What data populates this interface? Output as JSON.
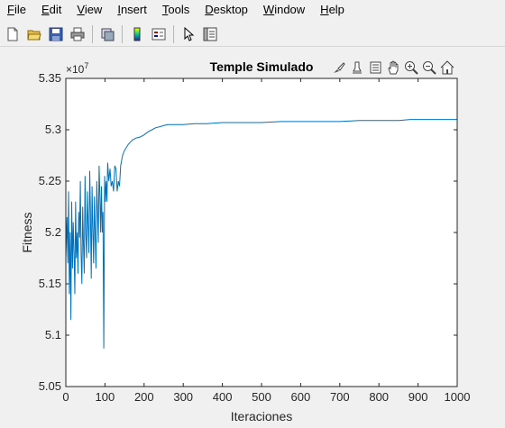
{
  "menu": {
    "items": [
      {
        "label": "File",
        "key": "F"
      },
      {
        "label": "Edit",
        "key": "E"
      },
      {
        "label": "View",
        "key": "V"
      },
      {
        "label": "Insert",
        "key": "I"
      },
      {
        "label": "Tools",
        "key": "T"
      },
      {
        "label": "Desktop",
        "key": "D"
      },
      {
        "label": "Window",
        "key": "W"
      },
      {
        "label": "Help",
        "key": "H"
      }
    ]
  },
  "toolbar": {
    "icons": [
      "new-figure-icon",
      "open-file-icon",
      "save-icon",
      "print-icon",
      "link-plot-icon",
      "colorbar-icon",
      "legend-icon",
      "edit-plot-arrow-icon",
      "property-inspector-icon"
    ]
  },
  "axes_toolbar": {
    "icons": [
      "brush-icon",
      "data-tips-icon",
      "export-icon",
      "pan-icon",
      "zoom-in-icon",
      "zoom-out-icon",
      "home-icon"
    ]
  },
  "chart_data": {
    "type": "line",
    "title": "Temple Simulado",
    "xlabel": "Iteraciones",
    "ylabel": "Fitness",
    "xlim": [
      0,
      1000
    ],
    "ylim": [
      5.05,
      5.35
    ],
    "exponent_label": "×10",
    "exponent_power": "7",
    "xticks": [
      "0",
      "100",
      "200",
      "300",
      "400",
      "500",
      "600",
      "700",
      "800",
      "900",
      "1000"
    ],
    "yticks": [
      "5.05",
      "5.1",
      "5.15",
      "5.2",
      "5.25",
      "5.3",
      "5.35"
    ],
    "line_color": "#0072bd",
    "series": [
      {
        "x": [
          0,
          3,
          5,
          7,
          9,
          11,
          13,
          15,
          17,
          19,
          21,
          23,
          25,
          27,
          29,
          31,
          33,
          35,
          37,
          39,
          41,
          43,
          45,
          47,
          49,
          51,
          53,
          55,
          57,
          59,
          61,
          63,
          65,
          67,
          69,
          71,
          73,
          75,
          77,
          79,
          81,
          83,
          85,
          87,
          89,
          91,
          93,
          95,
          97,
          99,
          101,
          103,
          105,
          107,
          110,
          113,
          116,
          119,
          122,
          125,
          128,
          131,
          134,
          137,
          140,
          145,
          150,
          155,
          160,
          165,
          170,
          180,
          190,
          200,
          210,
          220,
          230,
          240,
          250,
          260,
          280,
          300,
          330,
          360,
          400,
          450,
          500,
          550,
          600,
          650,
          700,
          750,
          800,
          850,
          880,
          900,
          950,
          1000
        ],
        "y": [
          5.175,
          5.215,
          5.17,
          5.24,
          5.14,
          5.2,
          5.115,
          5.23,
          5.165,
          5.21,
          5.18,
          5.14,
          5.23,
          5.175,
          5.2,
          5.16,
          5.22,
          5.195,
          5.25,
          5.18,
          5.15,
          5.225,
          5.19,
          5.16,
          5.255,
          5.2,
          5.175,
          5.24,
          5.21,
          5.18,
          5.26,
          5.22,
          5.155,
          5.245,
          5.205,
          5.17,
          5.235,
          5.2,
          5.165,
          5.25,
          5.22,
          5.19,
          5.265,
          5.235,
          5.2,
          5.245,
          5.2,
          5.22,
          5.087,
          5.255,
          5.23,
          5.25,
          5.23,
          5.268,
          5.25,
          5.262,
          5.245,
          5.25,
          5.24,
          5.265,
          5.262,
          5.24,
          5.25,
          5.245,
          5.265,
          5.275,
          5.28,
          5.283,
          5.286,
          5.288,
          5.29,
          5.292,
          5.293,
          5.295,
          5.298,
          5.3,
          5.302,
          5.303,
          5.304,
          5.305,
          5.305,
          5.305,
          5.306,
          5.306,
          5.307,
          5.307,
          5.307,
          5.308,
          5.308,
          5.308,
          5.308,
          5.309,
          5.309,
          5.309,
          5.31,
          5.31,
          5.31,
          5.31
        ]
      }
    ]
  }
}
